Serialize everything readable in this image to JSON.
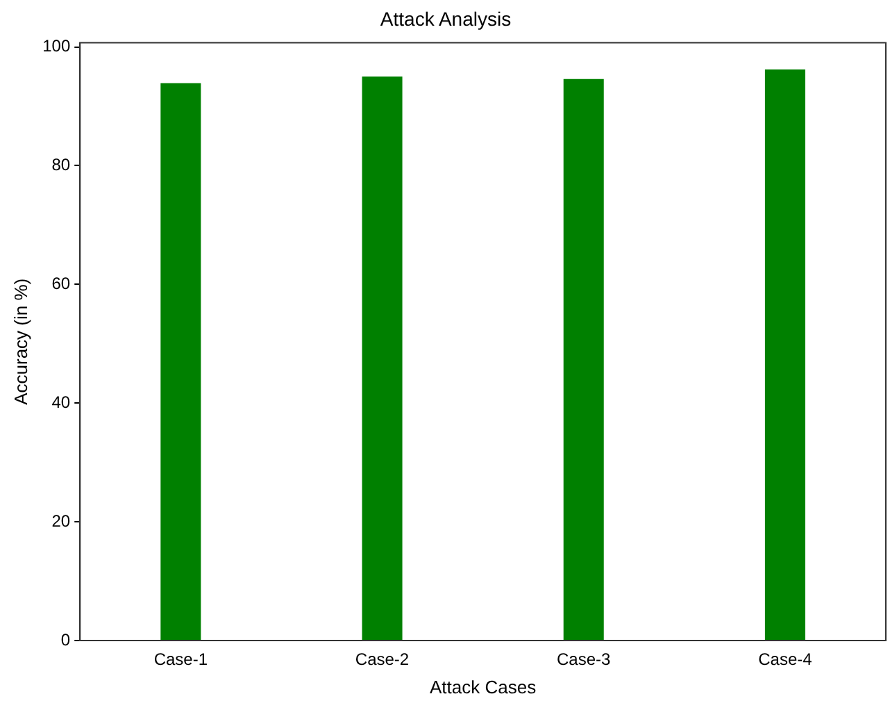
{
  "chart_data": {
    "type": "bar",
    "title": "Attack Analysis",
    "xlabel": "Attack Cases",
    "ylabel": "Accuracy (in %)",
    "categories": [
      "Case-1",
      "Case-2",
      "Case-3",
      "Case-4"
    ],
    "values": [
      93.9,
      95.0,
      94.6,
      96.2
    ],
    "color": "#008000",
    "ylim": [
      0,
      100.7
    ],
    "yticks": [
      0,
      20,
      40,
      60,
      80,
      100
    ],
    "grid": false,
    "legend": false
  }
}
